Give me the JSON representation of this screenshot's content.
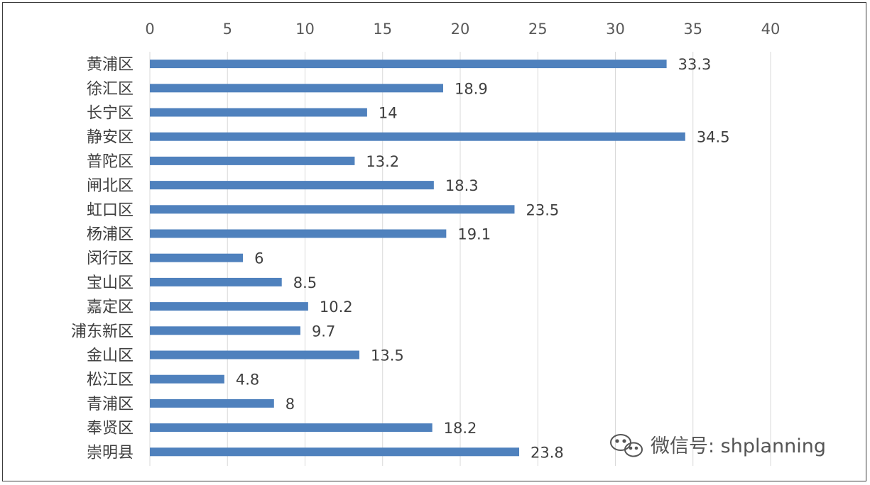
{
  "chart_data": {
    "type": "bar",
    "orientation": "horizontal",
    "title": "",
    "xlabel": "",
    "ylabel": "",
    "xlim": [
      0,
      40
    ],
    "x_ticks": [
      0,
      5,
      10,
      15,
      20,
      25,
      30,
      35,
      40
    ],
    "x_axis_position": "top",
    "grid": true,
    "legend": "none",
    "bar_color": "#4f81bd",
    "categories": [
      "黄浦区",
      "徐汇区",
      "长宁区",
      "静安区",
      "普陀区",
      "闸北区",
      "虹口区",
      "杨浦区",
      "闵行区",
      "宝山区",
      "嘉定区",
      "浦东新区",
      "金山区",
      "松江区",
      "青浦区",
      "奉贤区",
      "崇明县"
    ],
    "values": [
      33.3,
      18.9,
      14,
      34.5,
      13.2,
      18.3,
      23.5,
      19.1,
      6,
      8.5,
      10.2,
      9.7,
      13.5,
      4.8,
      8,
      18.2,
      23.8
    ],
    "data_labels": [
      "33.3",
      "18.9",
      "14",
      "34.5",
      "13.2",
      "18.3",
      "23.5",
      "19.1",
      "6",
      "8.5",
      "10.2",
      "9.7",
      "13.5",
      "4.8",
      "8",
      "18.2",
      "23.8"
    ]
  },
  "watermark": {
    "text": "微信号: shplanning",
    "icon": "wechat-icon"
  }
}
